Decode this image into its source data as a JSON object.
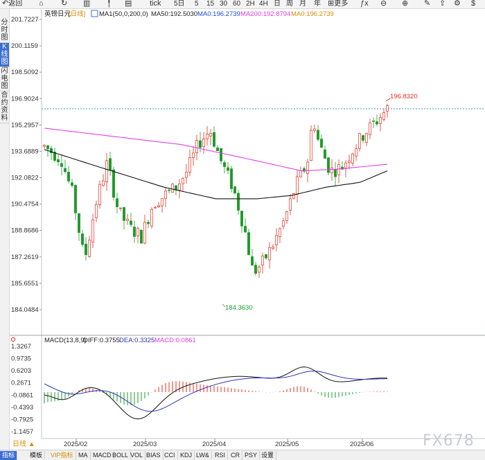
{
  "toolbar": {
    "back": "返回",
    "tick": "tick",
    "periods": [
      "5日",
      "5",
      "15",
      "30",
      "60",
      "2H",
      "4H",
      "日",
      "周",
      "月",
      "年"
    ],
    "more": "更多"
  },
  "left_tabs": [
    "分时图",
    "K线图",
    "闪电图",
    "合约资料"
  ],
  "legend": {
    "symbol": "英镑日元",
    "period_tag": "[日线]",
    "ma1": "MA1(50,0,200,0)",
    "ma50": "MA50:192.5030",
    "ma0": "MA0:196.2739",
    "ma200": "MA200:192.8794",
    "ma0b": "MA0:196.2739"
  },
  "macd_legend": {
    "name": "MACD(13,8,9)",
    "diff": "DIFF:0.3755",
    "dea": "DEA:0.3325",
    "macd": "MACD:0.0861"
  },
  "price_axis": [
    "201.7227",
    "200.1159",
    "198.5092",
    "196.9024",
    "195.2957",
    "193.6889",
    "192.0822",
    "190.4754",
    "188.8686",
    "187.2619",
    "185.6551",
    "184.0484"
  ],
  "macd_axis": [
    "1.3267",
    "0.9735",
    "0.6203",
    "0.2671",
    "-0.0861",
    "-0.4393",
    "-0.7925",
    "-1.1457"
  ],
  "date_axis": [
    "2025/02",
    "2025/03",
    "2025/04",
    "2025/05",
    "2025/06"
  ],
  "annotations": {
    "high": "196.8320",
    "low": "184.3630"
  },
  "period_flag": "日线 ▲",
  "bottom_tabs": [
    "指标",
    "模板",
    "VIP指标",
    "MA",
    "MACD",
    "BOLL",
    "VOL",
    "BIAS",
    "CCI",
    "KDJ",
    "LW&",
    "RSI",
    "CR",
    "PSY",
    "设置"
  ],
  "watermark": "FX678",
  "colors": {
    "up": "#e0301e",
    "down": "#1e9a2a",
    "ma50": "#000000",
    "ma200": "#e23ee6",
    "ma0": "#1c4fd6",
    "dea": "#2b33b8",
    "active_tab": "#3b6fd1"
  },
  "chart_data": {
    "type": "candlestick",
    "price_range": [
      184.0484,
      201.7227
    ],
    "last_close": 196.2739,
    "high_mark": 196.832,
    "low_mark": 184.363,
    "ma50_last": 192.503,
    "ma200_last": 192.8794,
    "macd": {
      "diff": 0.3755,
      "dea": 0.3325,
      "macd": 0.0861,
      "range": [
        -1.1457,
        1.3267
      ]
    }
  }
}
